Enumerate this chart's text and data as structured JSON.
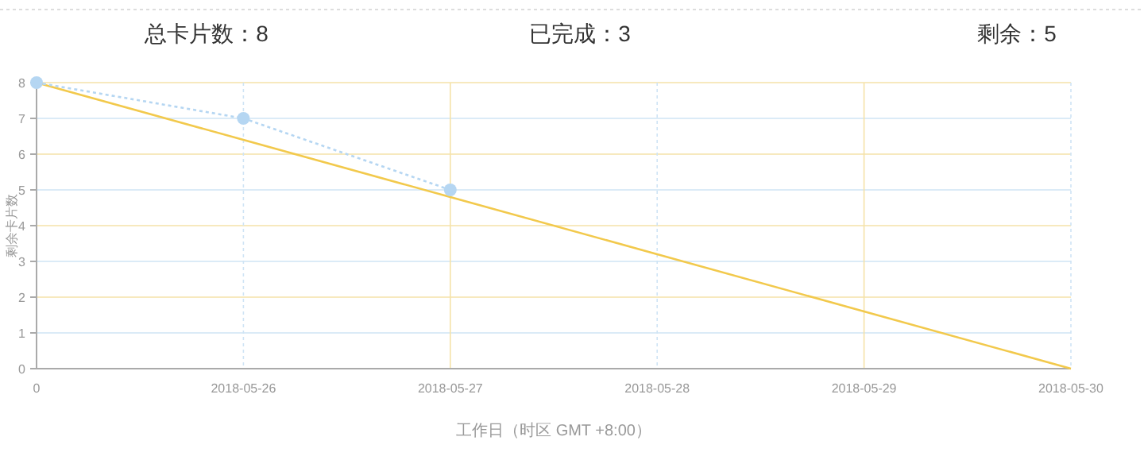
{
  "chart_data": {
    "type": "line",
    "annotations": [
      "总卡片数：8",
      "已完成：3",
      "剩余：5"
    ],
    "xlabel": "工作日（时区 GMT +8:00）",
    "ylabel": "剩余卡片数",
    "categories": [
      "0",
      "2018-05-26",
      "2018-05-27",
      "2018-05-28",
      "2018-05-29",
      "2018-05-30"
    ],
    "series": [
      {
        "color": "#f2c94c",
        "values": [
          8,
          6.4,
          4.8,
          3.2,
          1.6,
          0
        ],
        "line_style": "solid",
        "marker": "none"
      },
      {
        "color": "#b5d6f2",
        "values": [
          8,
          7,
          5,
          null,
          null,
          null
        ],
        "line_style": "dotted",
        "marker": "circle"
      }
    ],
    "ylim": [
      0,
      8
    ],
    "yticks": [
      0,
      1,
      2,
      3,
      4,
      5,
      6,
      7,
      8
    ],
    "grid": true
  }
}
